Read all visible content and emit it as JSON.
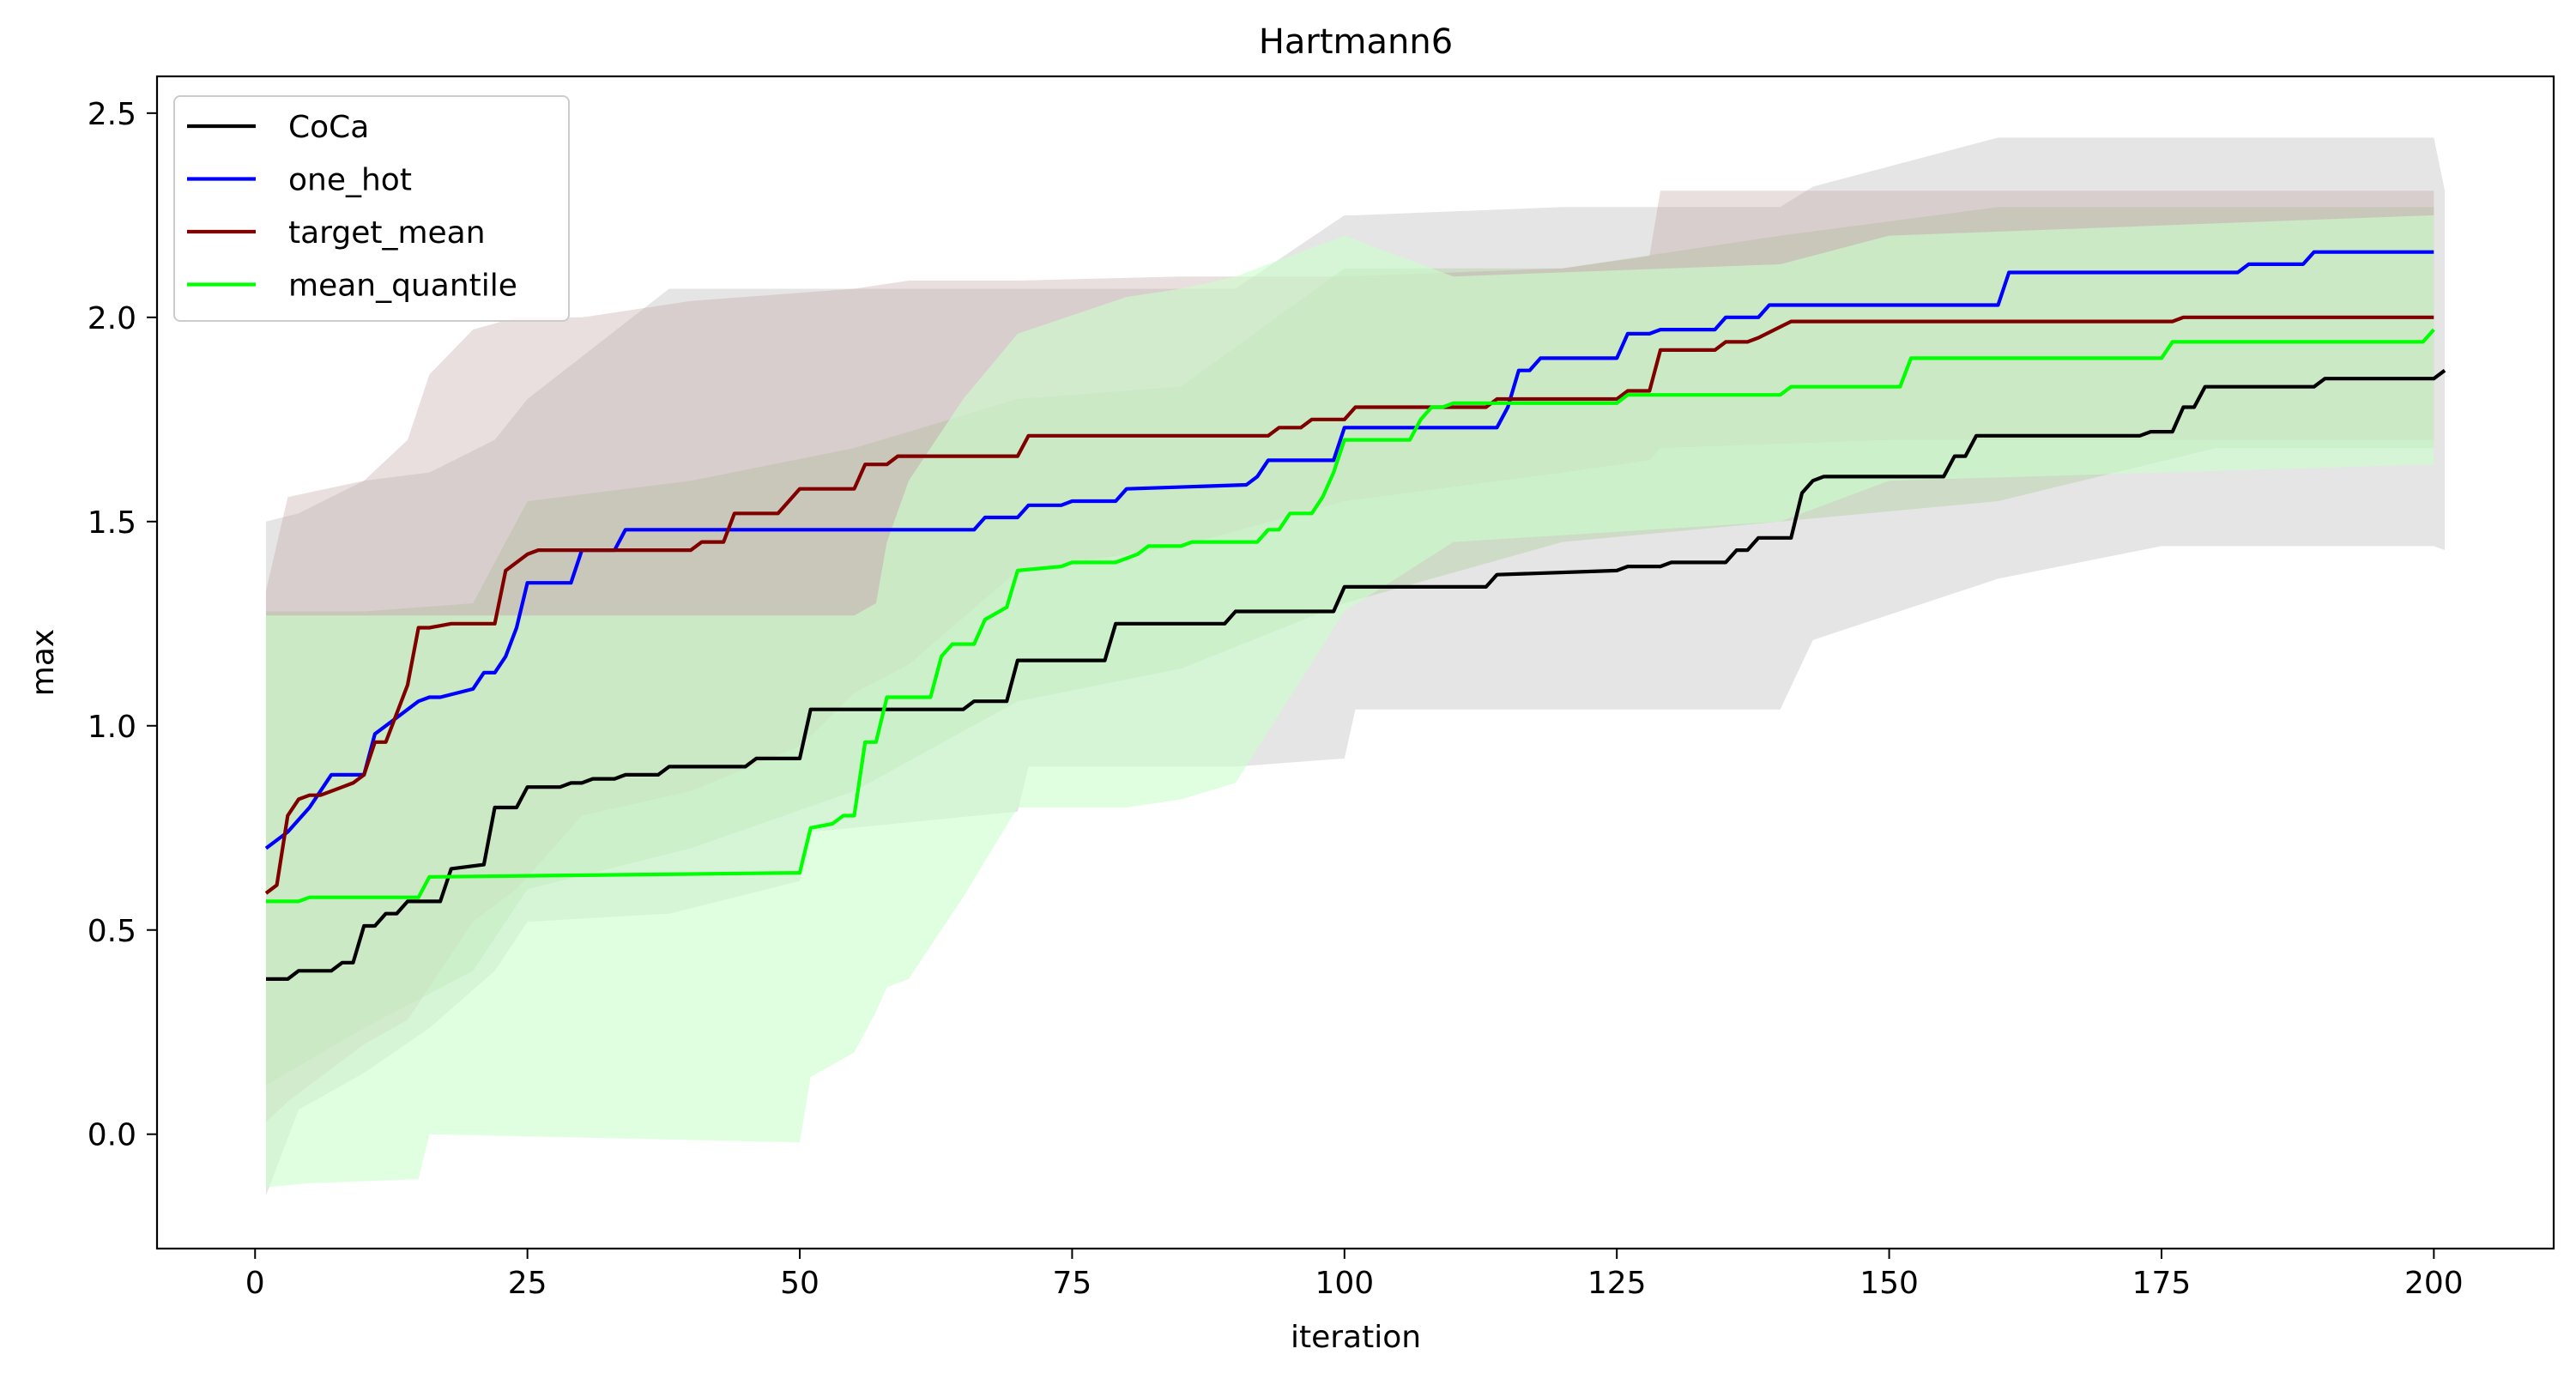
{
  "chart_data": {
    "type": "line",
    "title": "Hartmann6",
    "xlabel": "iteration",
    "ylabel": "max",
    "xlim": [
      -9,
      211
    ],
    "ylim": [
      -0.28,
      2.59
    ],
    "xticks": [
      0,
      25,
      50,
      75,
      100,
      125,
      150,
      175,
      200
    ],
    "xtick_labels": [
      "0",
      "25",
      "50",
      "75",
      "100",
      "125",
      "150",
      "175",
      "200"
    ],
    "yticks": [
      0.0,
      0.5,
      1.0,
      1.5,
      2.0,
      2.5
    ],
    "ytick_labels": [
      "0.0",
      "0.5",
      "1.0",
      "1.5",
      "2.0",
      "2.5"
    ],
    "grid": false,
    "legend_position": "top-left",
    "series": [
      {
        "name": "CoCa",
        "color": "#000000",
        "band_color": "#b4b4b4",
        "band_opacity": 0.35,
        "x": [
          1,
          3,
          4,
          7,
          8,
          9,
          10,
          11,
          12,
          13,
          14,
          15,
          17,
          18,
          21,
          22,
          24,
          25,
          28,
          29,
          30,
          31,
          33,
          34,
          35,
          37,
          38,
          45,
          46,
          50,
          51,
          61,
          65,
          66,
          69,
          70,
          78,
          79,
          89,
          90,
          99,
          100,
          113,
          114,
          125,
          126,
          129,
          130,
          135,
          136,
          137,
          138,
          141,
          142,
          143,
          144,
          150,
          151,
          155,
          156,
          157,
          158,
          162,
          163,
          173,
          174,
          176,
          177,
          178,
          179,
          180,
          189,
          190,
          199,
          200,
          201
        ],
        "values": [
          0.38,
          0.38,
          0.4,
          0.4,
          0.42,
          0.42,
          0.51,
          0.51,
          0.54,
          0.54,
          0.57,
          0.57,
          0.57,
          0.65,
          0.66,
          0.8,
          0.8,
          0.85,
          0.85,
          0.86,
          0.86,
          0.87,
          0.87,
          0.88,
          0.88,
          0.88,
          0.9,
          0.9,
          0.92,
          0.92,
          1.04,
          1.04,
          1.04,
          1.06,
          1.06,
          1.16,
          1.16,
          1.25,
          1.25,
          1.28,
          1.28,
          1.34,
          1.34,
          1.37,
          1.38,
          1.39,
          1.39,
          1.4,
          1.4,
          1.43,
          1.43,
          1.46,
          1.46,
          1.57,
          1.6,
          1.61,
          1.61,
          1.61,
          1.61,
          1.66,
          1.66,
          1.71,
          1.71,
          1.71,
          1.71,
          1.72,
          1.72,
          1.78,
          1.78,
          1.83,
          1.83,
          1.83,
          1.85,
          1.85,
          1.85,
          1.87
        ],
        "band_x": [
          1,
          4,
          10,
          16,
          22,
          25,
          38,
          50,
          51,
          70,
          71,
          90,
          100,
          101,
          120,
          140,
          143,
          160,
          175,
          200,
          201
        ],
        "band_lower": [
          -0.15,
          0.06,
          0.15,
          0.26,
          0.4,
          0.52,
          0.54,
          0.62,
          0.74,
          0.79,
          0.9,
          0.9,
          0.92,
          1.04,
          1.04,
          1.04,
          1.21,
          1.36,
          1.44,
          1.44,
          1.43
        ],
        "band_upper": [
          1.5,
          1.52,
          1.6,
          1.62,
          1.7,
          1.8,
          2.07,
          2.07,
          2.07,
          2.07,
          2.07,
          2.07,
          2.25,
          2.25,
          2.27,
          2.27,
          2.32,
          2.44,
          2.44,
          2.44,
          2.31
        ]
      },
      {
        "name": "one_hot",
        "color": "#0000ff",
        "band_color": "#a0c890",
        "band_opacity": 0.35,
        "x": [
          1,
          3,
          5,
          7,
          10,
          11,
          12,
          13,
          15,
          16,
          17,
          20,
          21,
          22,
          23,
          24,
          25,
          29,
          30,
          33,
          34,
          45,
          46,
          66,
          67,
          70,
          71,
          74,
          75,
          79,
          80,
          91,
          92,
          93,
          94,
          99,
          100,
          114,
          115,
          116,
          117,
          118,
          119,
          125,
          126,
          128,
          129,
          134,
          135,
          138,
          139,
          160,
          161,
          182,
          183,
          188,
          189,
          200
        ],
        "values": [
          0.7,
          0.74,
          0.8,
          0.88,
          0.88,
          0.98,
          1.0,
          1.02,
          1.06,
          1.07,
          1.07,
          1.09,
          1.13,
          1.13,
          1.17,
          1.24,
          1.35,
          1.35,
          1.43,
          1.43,
          1.48,
          1.48,
          1.48,
          1.48,
          1.51,
          1.51,
          1.54,
          1.54,
          1.55,
          1.55,
          1.58,
          1.59,
          1.61,
          1.65,
          1.65,
          1.65,
          1.73,
          1.73,
          1.78,
          1.87,
          1.87,
          1.9,
          1.9,
          1.9,
          1.96,
          1.96,
          1.97,
          1.97,
          2.0,
          2.0,
          2.03,
          2.03,
          2.11,
          2.11,
          2.13,
          2.13,
          2.16,
          2.16
        ],
        "band_x": [
          1,
          10,
          20,
          25,
          40,
          55,
          70,
          85,
          100,
          120,
          140,
          160,
          180,
          200
        ],
        "band_lower": [
          0.12,
          0.26,
          0.4,
          0.6,
          0.7,
          0.84,
          1.06,
          1.14,
          1.3,
          1.45,
          1.5,
          1.55,
          1.68,
          1.68
        ],
        "band_upper": [
          1.28,
          1.28,
          1.3,
          1.55,
          1.6,
          1.68,
          1.8,
          1.83,
          2.12,
          2.12,
          2.2,
          2.27,
          2.27,
          2.27
        ]
      },
      {
        "name": "target_mean",
        "color": "#800000",
        "band_color": "#c4a4a4",
        "band_opacity": 0.35,
        "x": [
          1,
          2,
          3,
          4,
          5,
          6,
          8,
          9,
          10,
          11,
          12,
          14,
          15,
          16,
          18,
          22,
          23,
          25,
          26,
          28,
          40,
          41,
          43,
          44,
          48,
          50,
          55,
          56,
          58,
          59,
          70,
          71,
          93,
          94,
          96,
          97,
          100,
          101,
          113,
          114,
          125,
          126,
          128,
          129,
          134,
          135,
          137,
          138,
          141,
          176,
          177,
          200
        ],
        "values": [
          0.59,
          0.61,
          0.78,
          0.82,
          0.83,
          0.83,
          0.85,
          0.86,
          0.88,
          0.96,
          0.96,
          1.1,
          1.24,
          1.24,
          1.25,
          1.25,
          1.38,
          1.42,
          1.43,
          1.43,
          1.43,
          1.45,
          1.45,
          1.52,
          1.52,
          1.58,
          1.58,
          1.64,
          1.64,
          1.66,
          1.66,
          1.71,
          1.71,
          1.73,
          1.73,
          1.75,
          1.75,
          1.78,
          1.78,
          1.8,
          1.8,
          1.82,
          1.82,
          1.92,
          1.92,
          1.94,
          1.94,
          1.95,
          1.99,
          1.99,
          2.0,
          2.0
        ],
        "band_x": [
          1,
          3,
          10,
          14,
          16,
          20,
          24,
          30,
          40,
          50,
          55,
          60,
          70,
          85,
          100,
          120,
          128,
          129,
          150,
          200
        ],
        "band_lower": [
          0.03,
          0.08,
          0.22,
          0.28,
          0.36,
          0.52,
          0.6,
          0.78,
          0.84,
          0.95,
          1.08,
          1.15,
          1.38,
          1.44,
          1.55,
          1.62,
          1.65,
          1.68,
          1.7,
          1.7
        ],
        "band_upper": [
          1.33,
          1.56,
          1.6,
          1.7,
          1.86,
          1.97,
          2.0,
          2.0,
          2.04,
          2.06,
          2.07,
          2.09,
          2.09,
          2.1,
          2.1,
          2.12,
          2.15,
          2.31,
          2.31,
          2.31
        ]
      },
      {
        "name": "mean_quantile",
        "color": "#00ff00",
        "band_color": "#ccffcc",
        "band_opacity": 0.6,
        "x": [
          1,
          4,
          5,
          15,
          16,
          50,
          51,
          53,
          54,
          55,
          56,
          57,
          58,
          59,
          62,
          63,
          64,
          66,
          67,
          69,
          70,
          74,
          75,
          78,
          79,
          81,
          82,
          85,
          86,
          92,
          93,
          94,
          95,
          97,
          98,
          99,
          100,
          101,
          106,
          107,
          108,
          109,
          110,
          125,
          126,
          140,
          141,
          151,
          152,
          160,
          161,
          175,
          176,
          199,
          200
        ],
        "values": [
          0.57,
          0.57,
          0.58,
          0.58,
          0.63,
          0.64,
          0.75,
          0.76,
          0.78,
          0.78,
          0.96,
          0.96,
          1.07,
          1.07,
          1.07,
          1.17,
          1.2,
          1.2,
          1.26,
          1.29,
          1.38,
          1.39,
          1.4,
          1.4,
          1.4,
          1.42,
          1.44,
          1.44,
          1.45,
          1.45,
          1.48,
          1.48,
          1.52,
          1.52,
          1.56,
          1.62,
          1.7,
          1.7,
          1.7,
          1.75,
          1.78,
          1.78,
          1.79,
          1.79,
          1.81,
          1.81,
          1.83,
          1.83,
          1.9,
          1.9,
          1.9,
          1.9,
          1.94,
          1.94,
          1.97
        ],
        "band_x": [
          1,
          5,
          15,
          16,
          50,
          51,
          55,
          57,
          58,
          60,
          65,
          70,
          80,
          85,
          90,
          100,
          110,
          140,
          150,
          200
        ],
        "band_lower": [
          -0.13,
          -0.12,
          -0.11,
          0.0,
          -0.02,
          0.14,
          0.2,
          0.3,
          0.36,
          0.38,
          0.58,
          0.8,
          0.8,
          0.82,
          0.86,
          1.28,
          1.45,
          1.5,
          1.6,
          1.64
        ],
        "band_upper": [
          1.27,
          1.27,
          1.27,
          1.27,
          1.27,
          1.27,
          1.27,
          1.3,
          1.45,
          1.6,
          1.8,
          1.96,
          2.05,
          2.07,
          2.1,
          2.2,
          2.1,
          2.13,
          2.2,
          2.25
        ]
      }
    ]
  }
}
